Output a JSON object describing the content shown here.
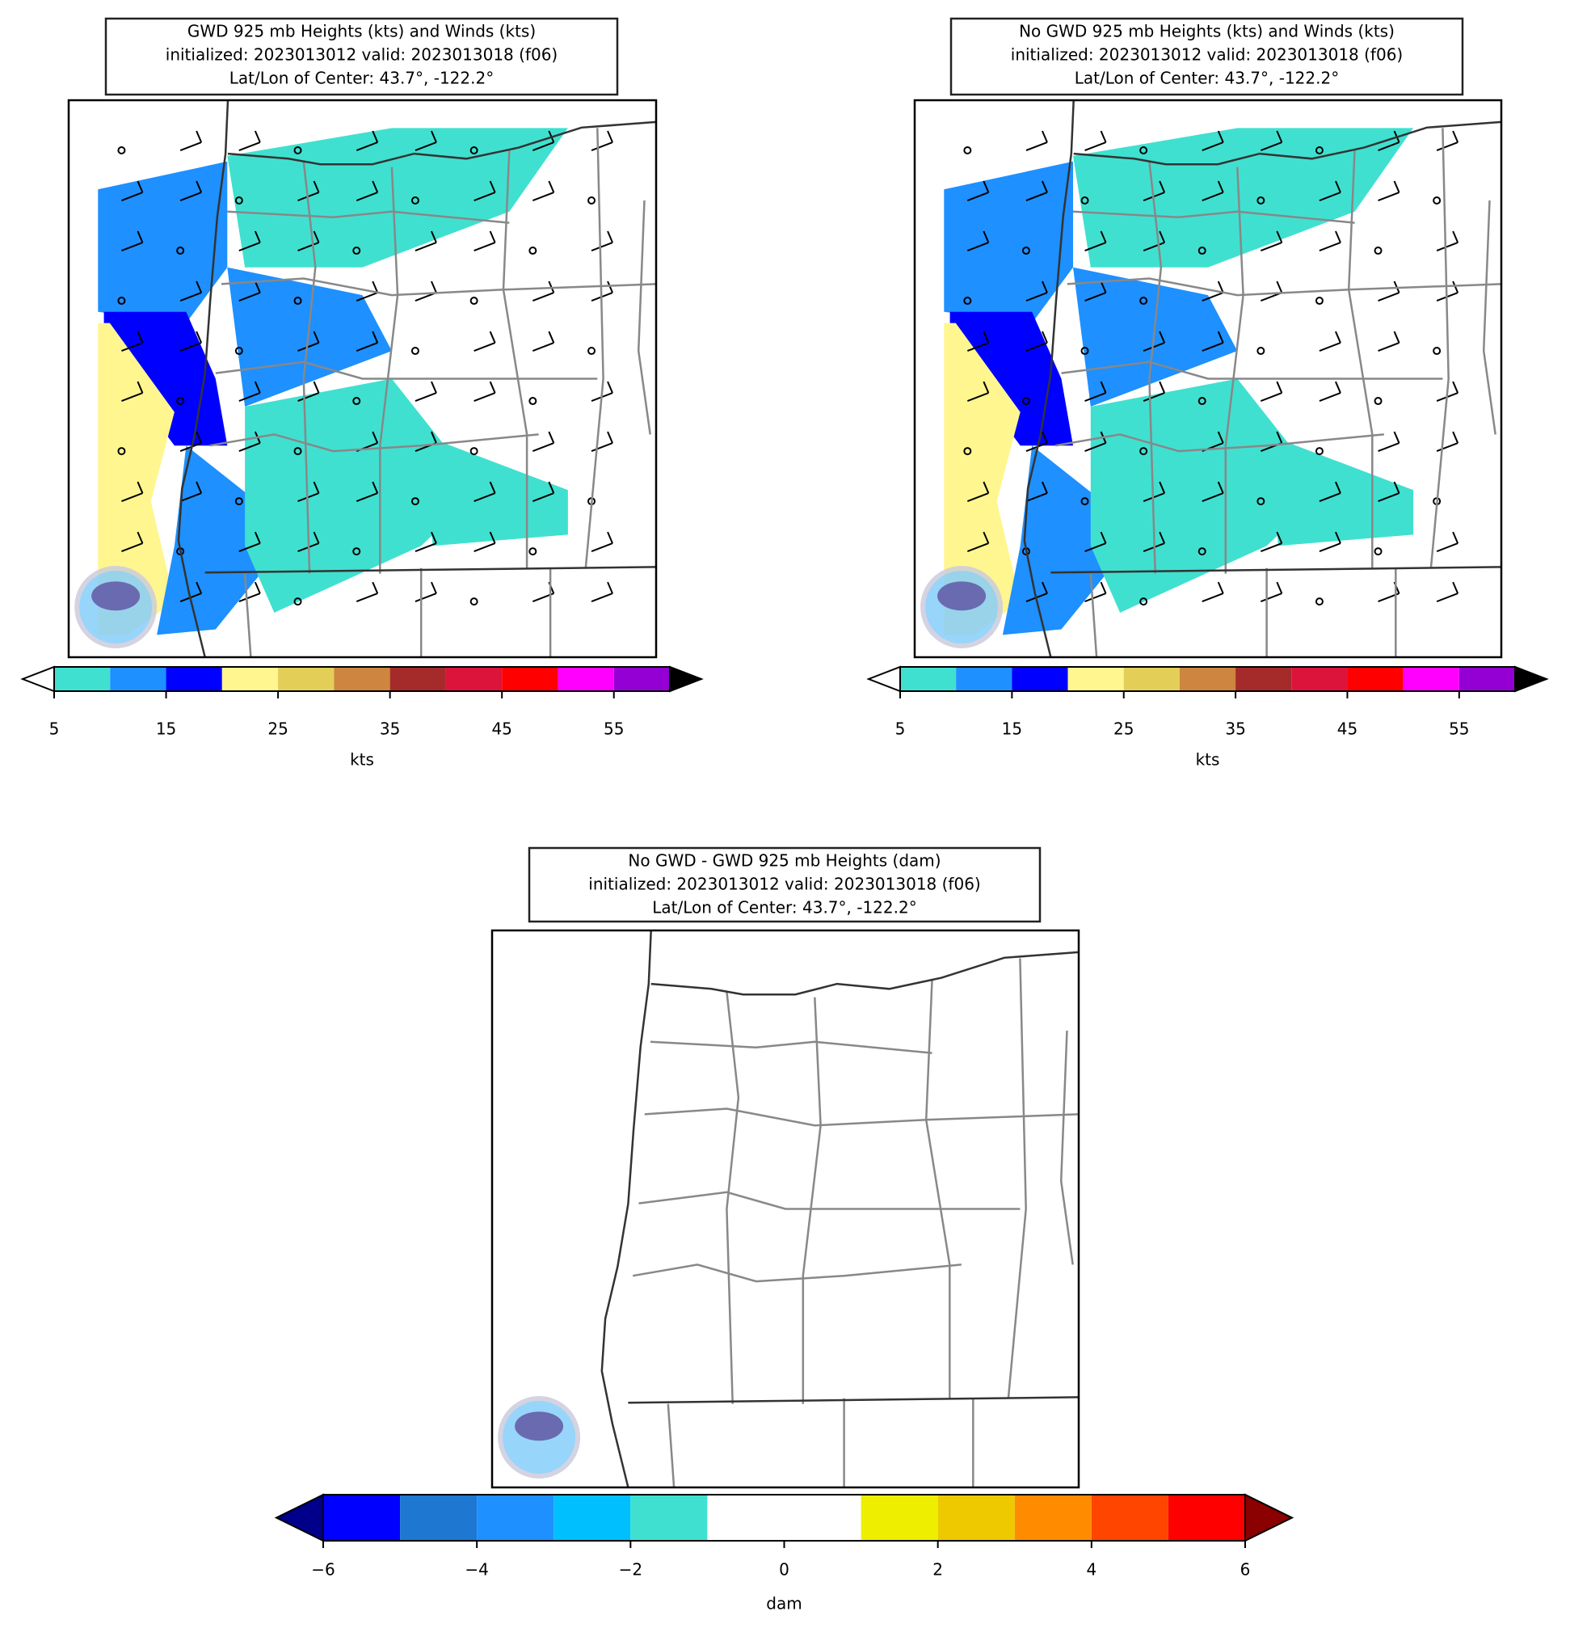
{
  "panels": [
    {
      "title": [
        "GWD 925 mb Heights (kts) and Winds (kts)",
        "initialized: 2023013012 valid: 2023013018 (f06)",
        "Lat/Lon of Center: 43.7°, -122.2°"
      ],
      "colorbar": {
        "bounds": [
          5,
          10,
          15,
          20,
          25,
          30,
          35,
          40,
          45,
          50,
          55,
          60
        ],
        "colors": [
          "#40e0d0",
          "#1e90ff",
          "#0000ff",
          "#fff68f",
          "#e3cf57",
          "#cd853f",
          "#a52a2a",
          "#dc143c",
          "#ff0000",
          "#ff00ff",
          "#9400d3"
        ],
        "under": "#ffffff",
        "over": "#000000",
        "ticks": [
          5,
          15,
          25,
          35,
          45,
          55
        ],
        "label": "kts"
      }
    },
    {
      "title": [
        "No GWD 925 mb Heights (kts) and Winds (kts)",
        "initialized: 2023013012 valid: 2023013018 (f06)",
        "Lat/Lon of Center: 43.7°, -122.2°"
      ],
      "colorbar": {
        "bounds": [
          5,
          10,
          15,
          20,
          25,
          30,
          35,
          40,
          45,
          50,
          55,
          60
        ],
        "colors": [
          "#40e0d0",
          "#1e90ff",
          "#0000ff",
          "#fff68f",
          "#e3cf57",
          "#cd853f",
          "#a52a2a",
          "#dc143c",
          "#ff0000",
          "#ff00ff",
          "#9400d3"
        ],
        "under": "#ffffff",
        "over": "#000000",
        "ticks": [
          5,
          15,
          25,
          35,
          45,
          55
        ],
        "label": "kts"
      }
    },
    {
      "title": [
        "No GWD - GWD 925 mb Heights (dam)",
        "initialized: 2023013012 valid: 2023013018 (f06)",
        "Lat/Lon of Center: 43.7°, -122.2°"
      ],
      "colorbar": {
        "bounds": [
          -6,
          -5,
          -4,
          -3,
          -2,
          -1,
          0,
          1,
          2,
          3,
          4,
          5,
          6
        ],
        "colors": [
          "#0000ff",
          "#1e78d2",
          "#1e90ff",
          "#00bfff",
          "#40e0d0",
          "#ffffff",
          "#ffffff",
          "#eeee00",
          "#eec900",
          "#ff8c00",
          "#ff4500",
          "#ff0000"
        ],
        "under": "#00008b",
        "over": "#8b0000",
        "ticks": [
          {
            "value": -6,
            "label": "−6"
          },
          {
            "value": -4,
            "label": "−4"
          },
          {
            "value": -2,
            "label": "−2"
          },
          0,
          2,
          4,
          6
        ],
        "label": "dam"
      }
    }
  ]
}
